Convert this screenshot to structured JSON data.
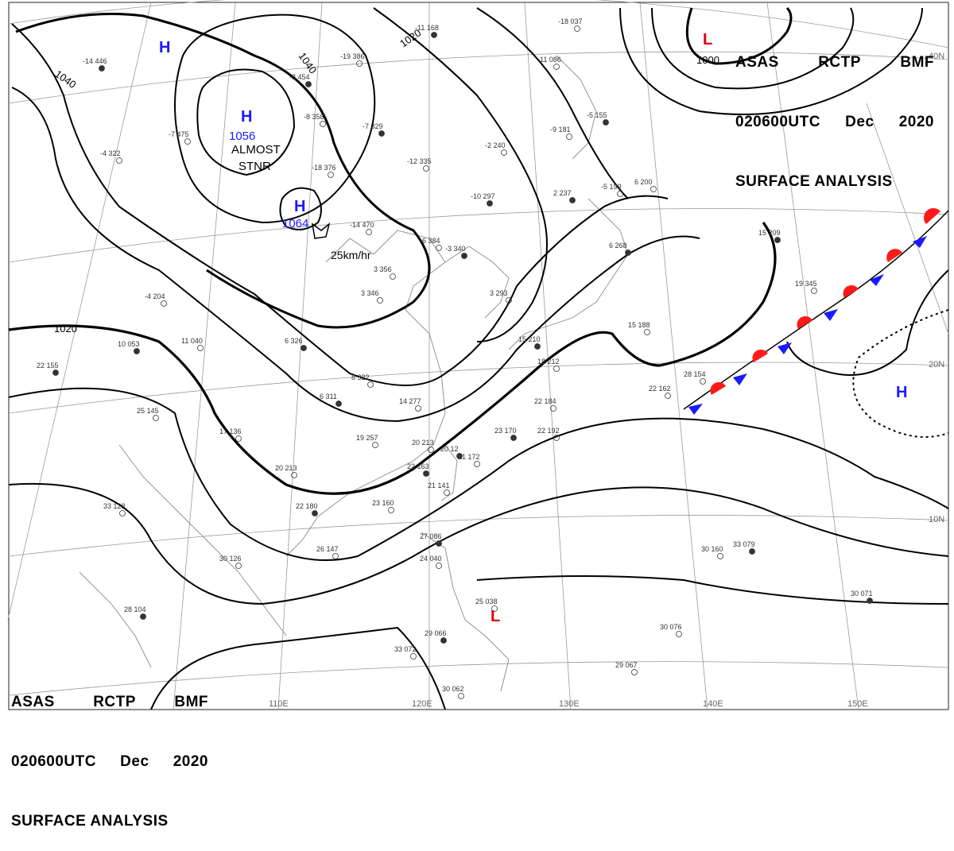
{
  "header": {
    "line1": [
      "ASAS",
      "RCTP",
      "BMF"
    ],
    "line2": [
      "020600UTC",
      "Dec",
      "2020"
    ],
    "line3": "SURFACE ANALYSIS"
  },
  "footer": {
    "line1": [
      "ASAS",
      "RCTP",
      "BMF"
    ],
    "line2": [
      "020600UTC",
      "Dec",
      "2020"
    ],
    "line3": "SURFACE ANALYSIS"
  },
  "lon_labels": [
    "110E",
    "120E",
    "130E",
    "140E",
    "150E"
  ],
  "lat_labels": [
    "40N",
    "20N",
    "10N"
  ],
  "isobar_labels": [
    "1040",
    "1040",
    "1020",
    "1020",
    "1000"
  ],
  "pressure_centers": {
    "high_main": {
      "symbol": "H",
      "value": "1056",
      "note_1": "ALMOST",
      "note_2": "STNR"
    },
    "high_second": {
      "symbol": "H",
      "value": "1064",
      "motion": "25km/hr"
    },
    "high_nw": {
      "symbol": "H"
    },
    "high_pacific": {
      "symbol": "H"
    },
    "low_ne": {
      "symbol": "L"
    },
    "low_philippines": {
      "symbol": "L"
    }
  },
  "colors": {
    "high": "#1a1aff",
    "low": "#e00000",
    "isobar": "#000000",
    "grid": "#9a9a9a",
    "coast": "#8a8a8a",
    "front_warm": "#ff1a1a",
    "front_cold": "#1a1aff"
  },
  "station_labels": [
    "-14 446",
    "-7 475",
    "-4 322",
    "22 155",
    "25 145",
    "33 128",
    "28 104",
    "30 126",
    "-4 204",
    "10 053",
    "11 040",
    "20 213",
    "22 180",
    "26 147",
    "17 136",
    "-8 454",
    "-19 386",
    "-8 358",
    "-7 329",
    "-18 376",
    "-12 335",
    "-10 297",
    "-14 470",
    "-6 384",
    "-3 340",
    "3 356",
    "3 346",
    "6 326",
    "8 322",
    "14 277",
    "6 311",
    "19 257",
    "20 213",
    "22 163",
    "21 141",
    "23 160",
    "27 086",
    "24 040",
    "25 038",
    "29 066",
    "33 072",
    "30 062",
    "-11 168",
    "-18 037",
    "-11 086",
    "-5 155",
    "-9 181",
    "-2 240",
    "2 237",
    "-5 199",
    "6 200",
    "6 268",
    "15 188",
    "3 293",
    "15 210",
    "18 212",
    "22 184",
    "23 170",
    "22 192",
    "21 172",
    "20 12",
    "22 162",
    "28 154",
    "15 209",
    "19 345",
    "30 160",
    "33 079",
    "30 076",
    "29 067",
    "30 071"
  ]
}
